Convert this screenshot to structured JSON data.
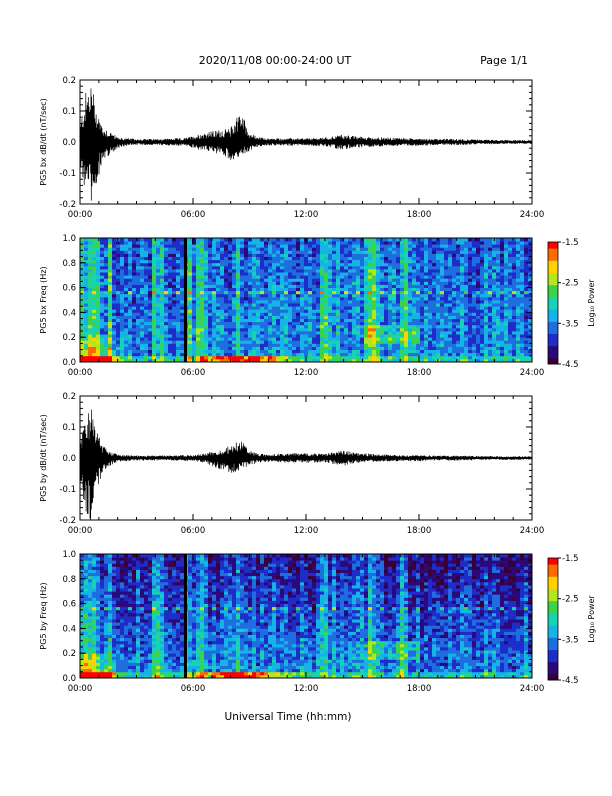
{
  "header": {
    "date_range": "2020/11/08  00:00-24:00 UT",
    "page": "Page 1/1"
  },
  "x_axis_title": "Universal Time (hh:mm)",
  "x_ticks": [
    "00:00",
    "06:00",
    "12:00",
    "18:00",
    "24:00"
  ],
  "colors": {
    "waveform": "#000000",
    "colormap": [
      "#3a0035",
      "#2a0a7a",
      "#1e2cc8",
      "#1e6ee0",
      "#16b4e6",
      "#18d2b4",
      "#3cd24a",
      "#b4e61e",
      "#ffd200",
      "#ff6a00",
      "#ff0000"
    ]
  },
  "chart_data": [
    {
      "type": "line",
      "panel": "bx_waveform",
      "ylabel": "PG5 bx dB/dt (nT/sec)",
      "ylim": [
        -0.2,
        0.2
      ],
      "y_ticks": [
        "0.2",
        "0.1",
        "0.0",
        "-0.1",
        "-0.2"
      ],
      "xlim_hours": [
        0,
        24
      ],
      "envelope": {
        "hours": [
          0,
          0.3,
          0.6,
          0.9,
          1.2,
          1.6,
          2.0,
          2.5,
          3.0,
          4.0,
          5.0,
          5.5,
          6.0,
          6.5,
          7.0,
          7.5,
          8.0,
          8.5,
          9.0,
          9.5,
          10.0,
          11.0,
          12.0,
          13.0,
          13.5,
          14.0,
          14.5,
          15.0,
          16.0,
          17.0,
          18.0,
          19.0,
          20.0,
          21.0,
          22.0,
          23.0,
          24.0
        ],
        "upper": [
          0.05,
          0.16,
          0.2,
          0.11,
          0.05,
          0.035,
          0.015,
          0.012,
          0.01,
          0.01,
          0.012,
          0.012,
          0.02,
          0.03,
          0.035,
          0.04,
          0.045,
          0.11,
          0.03,
          0.015,
          0.012,
          0.012,
          0.012,
          0.015,
          0.02,
          0.025,
          0.02,
          0.017,
          0.015,
          0.013,
          0.012,
          0.01,
          0.01,
          0.008,
          0.007,
          0.006,
          0.006
        ],
        "lower": [
          -0.07,
          -0.18,
          -0.21,
          -0.13,
          -0.06,
          -0.04,
          -0.02,
          -0.012,
          -0.01,
          -0.01,
          -0.012,
          -0.012,
          -0.02,
          -0.03,
          -0.035,
          -0.04,
          -0.06,
          -0.05,
          -0.03,
          -0.015,
          -0.012,
          -0.012,
          -0.012,
          -0.015,
          -0.02,
          -0.025,
          -0.02,
          -0.017,
          -0.015,
          -0.013,
          -0.012,
          -0.01,
          -0.01,
          -0.008,
          -0.007,
          -0.006,
          -0.006
        ]
      }
    },
    {
      "type": "heatmap",
      "panel": "bx_spectrogram",
      "ylabel": "PG5 bx Freq (Hz)",
      "ylim": [
        0.0,
        1.0
      ],
      "y_ticks": [
        "1.0",
        "0.8",
        "0.6",
        "0.4",
        "0.2",
        "0.0"
      ],
      "colorbar": {
        "label": "Log₁₀ Power",
        "range": [
          -4.5,
          -1.5
        ],
        "ticks": [
          "-1.5",
          "-2.5",
          "-3.5",
          "-4.5"
        ]
      },
      "vertical_gap_hours": 5.6
    },
    {
      "type": "line",
      "panel": "by_waveform",
      "ylabel": "PG5 by dB/dt (nT/sec)",
      "ylim": [
        -0.2,
        0.2
      ],
      "y_ticks": [
        "0.2",
        "0.1",
        "0.0",
        "-0.1",
        "-0.2"
      ],
      "xlim_hours": [
        0,
        24
      ],
      "envelope": {
        "hours": [
          0,
          0.3,
          0.6,
          0.9,
          1.2,
          1.6,
          2.0,
          2.5,
          3.0,
          4.0,
          5.0,
          5.5,
          6.0,
          6.5,
          7.0,
          7.5,
          8.0,
          8.5,
          9.0,
          9.5,
          10.0,
          11.0,
          12.0,
          13.0,
          13.5,
          14.0,
          14.5,
          15.0,
          16.0,
          17.0,
          18.0,
          19.0,
          20.0,
          21.0,
          22.0,
          23.0,
          24.0
        ],
        "upper": [
          0.06,
          0.14,
          0.18,
          0.1,
          0.04,
          0.02,
          0.012,
          0.01,
          0.008,
          0.008,
          0.008,
          0.01,
          0.01,
          0.015,
          0.02,
          0.03,
          0.04,
          0.06,
          0.025,
          0.015,
          0.012,
          0.015,
          0.015,
          0.015,
          0.02,
          0.025,
          0.02,
          0.015,
          0.012,
          0.01,
          0.01,
          0.008,
          0.008,
          0.007,
          0.006,
          0.006,
          0.006
        ],
        "lower": [
          -0.08,
          -0.17,
          -0.21,
          -0.12,
          -0.05,
          -0.025,
          -0.012,
          -0.01,
          -0.008,
          -0.008,
          -0.008,
          -0.01,
          -0.01,
          -0.015,
          -0.025,
          -0.04,
          -0.05,
          -0.04,
          -0.025,
          -0.015,
          -0.012,
          -0.015,
          -0.015,
          -0.015,
          -0.02,
          -0.025,
          -0.02,
          -0.015,
          -0.012,
          -0.01,
          -0.01,
          -0.008,
          -0.008,
          -0.007,
          -0.006,
          -0.006,
          -0.006
        ]
      }
    },
    {
      "type": "heatmap",
      "panel": "by_spectrogram",
      "ylabel": "PG5 by Freq (Hz)",
      "ylim": [
        0.0,
        1.0
      ],
      "y_ticks": [
        "1.0",
        "0.8",
        "0.6",
        "0.4",
        "0.2",
        "0.0"
      ],
      "colorbar": {
        "label": "Log₁₀ Power",
        "range": [
          -4.5,
          -1.5
        ],
        "ticks": [
          "-1.5",
          "-2.5",
          "-3.5",
          "-4.5"
        ]
      },
      "vertical_gap_hours": 5.6
    }
  ]
}
